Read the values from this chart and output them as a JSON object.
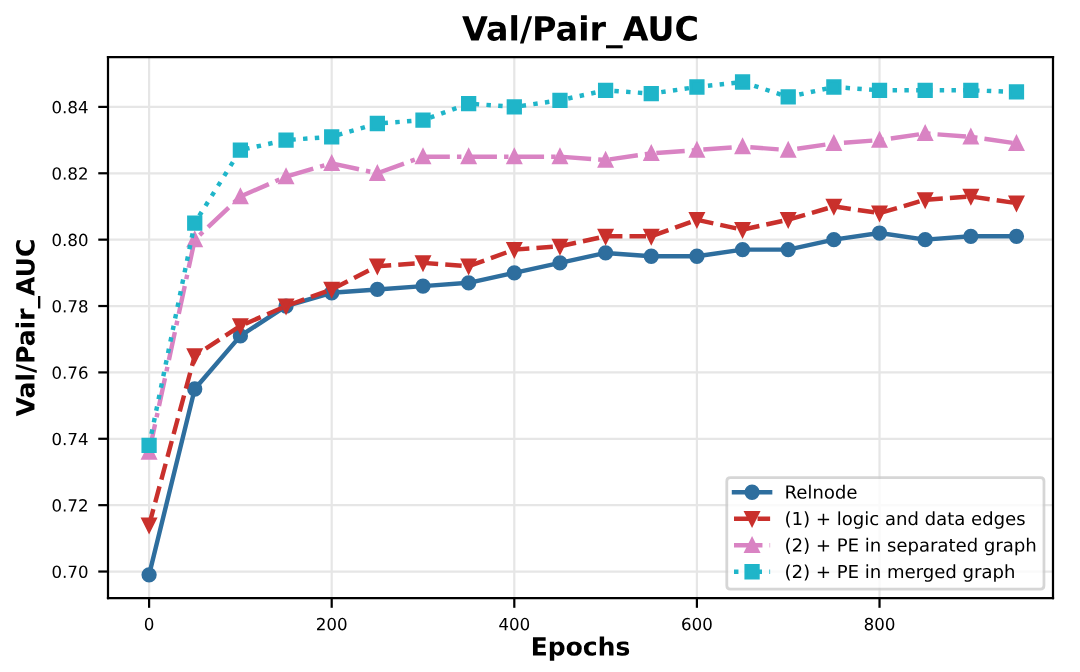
{
  "chart_data": {
    "type": "line",
    "title": "Val/Pair_AUC",
    "xlabel": "Epochs",
    "ylabel": "Val/Pair_AUC",
    "x": [
      0,
      50,
      100,
      150,
      200,
      250,
      300,
      350,
      400,
      450,
      500,
      550,
      600,
      650,
      700,
      750,
      800,
      850,
      900,
      950
    ],
    "xlim": [
      -45,
      990
    ],
    "xticks": [
      0,
      200,
      400,
      600,
      800
    ],
    "ylim": [
      0.692,
      0.855
    ],
    "yticks": [
      {
        "value": 0.7,
        "label": "0.70"
      },
      {
        "value": 0.72,
        "label": "0.72"
      },
      {
        "value": 0.74,
        "label": "0.74"
      },
      {
        "value": 0.76,
        "label": "0.76"
      },
      {
        "value": 0.78,
        "label": "0.78"
      },
      {
        "value": 0.8,
        "label": "0.80"
      },
      {
        "value": 0.82,
        "label": "0.82"
      },
      {
        "value": 0.84,
        "label": "0.84"
      }
    ],
    "grid": true,
    "legend": "lower right",
    "series": [
      {
        "name": "Relnode",
        "color": "#2e6e9e",
        "marker": "circle",
        "line_style": "solid",
        "values": [
          0.699,
          0.755,
          0.771,
          0.78,
          0.784,
          0.785,
          0.786,
          0.787,
          0.79,
          0.793,
          0.796,
          0.795,
          0.795,
          0.797,
          0.797,
          0.8,
          0.802,
          0.8,
          0.801,
          0.801
        ]
      },
      {
        "name": "(1) + logic and data edges",
        "color": "#c9302c",
        "marker": "triangle_down",
        "line_style": "dashed",
        "values": [
          0.714,
          0.765,
          0.774,
          0.78,
          0.785,
          0.792,
          0.793,
          0.792,
          0.797,
          0.798,
          0.801,
          0.801,
          0.806,
          0.803,
          0.806,
          0.81,
          0.808,
          0.812,
          0.813,
          0.811
        ]
      },
      {
        "name": "(2) + PE in separated graph",
        "color": "#d983c3",
        "marker": "triangle",
        "line_style": "dashdot",
        "values": [
          0.736,
          0.8,
          0.813,
          0.819,
          0.823,
          0.82,
          0.825,
          0.825,
          0.825,
          0.825,
          0.824,
          0.826,
          0.827,
          0.828,
          0.827,
          0.829,
          0.83,
          0.832,
          0.831,
          0.829
        ]
      },
      {
        "name": "(2) + PE in merged graph",
        "color": "#1fb5c9",
        "marker": "square",
        "line_style": "dotted",
        "values": [
          0.738,
          0.805,
          0.827,
          0.83,
          0.831,
          0.835,
          0.836,
          0.841,
          0.84,
          0.842,
          0.845,
          0.844,
          0.846,
          0.8475,
          0.843,
          0.846,
          0.845,
          0.845,
          0.845,
          0.8445
        ]
      }
    ]
  }
}
